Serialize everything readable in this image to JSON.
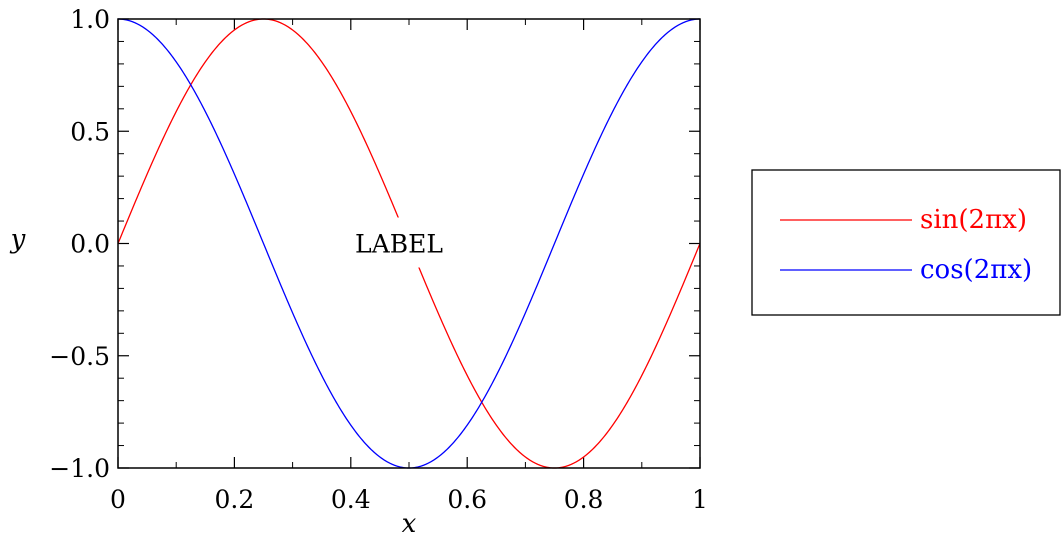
{
  "chart_data": {
    "type": "line",
    "title": "",
    "xlabel": "x",
    "ylabel": "y",
    "xlim": [
      0,
      1
    ],
    "ylim": [
      -1.0,
      1.0
    ],
    "xticks": [
      0,
      0.2,
      0.4,
      0.6,
      0.8,
      1
    ],
    "xtick_labels": [
      "0",
      "0.2",
      "0.4",
      "0.6",
      "0.8",
      "1"
    ],
    "yticks": [
      -1.0,
      -0.5,
      0.0,
      0.5,
      1.0
    ],
    "ytick_labels": [
      "−1.0",
      "−0.5",
      "0.0",
      "0.5",
      "1.0"
    ],
    "grid": false,
    "legend_position": "right",
    "series": [
      {
        "name": "sin(2πx)",
        "color": "#ff0000",
        "x": [
          0.0,
          0.025,
          0.05,
          0.075,
          0.1,
          0.125,
          0.15,
          0.175,
          0.2,
          0.225,
          0.25,
          0.275,
          0.3,
          0.325,
          0.35,
          0.375,
          0.4,
          0.425,
          0.45,
          0.475,
          0.5,
          0.525,
          0.55,
          0.575,
          0.6,
          0.625,
          0.65,
          0.675,
          0.7,
          0.725,
          0.75,
          0.775,
          0.8,
          0.825,
          0.85,
          0.875,
          0.9,
          0.925,
          0.95,
          0.975,
          1.0
        ],
        "y": [
          0.0,
          0.156,
          0.309,
          0.454,
          0.588,
          0.707,
          0.809,
          0.891,
          0.951,
          0.988,
          1.0,
          0.988,
          0.951,
          0.891,
          0.809,
          0.707,
          0.588,
          0.454,
          0.309,
          0.156,
          0.0,
          -0.156,
          -0.309,
          -0.454,
          -0.588,
          -0.707,
          -0.809,
          -0.891,
          -0.951,
          -0.988,
          -1.0,
          -0.988,
          -0.951,
          -0.891,
          -0.809,
          -0.707,
          -0.588,
          -0.454,
          -0.309,
          -0.156,
          0.0
        ]
      },
      {
        "name": "cos(2πx)",
        "color": "#0000ff",
        "x": [
          0.0,
          0.025,
          0.05,
          0.075,
          0.1,
          0.125,
          0.15,
          0.175,
          0.2,
          0.225,
          0.25,
          0.275,
          0.3,
          0.325,
          0.35,
          0.375,
          0.4,
          0.425,
          0.45,
          0.475,
          0.5,
          0.525,
          0.55,
          0.575,
          0.6,
          0.625,
          0.65,
          0.675,
          0.7,
          0.725,
          0.75,
          0.775,
          0.8,
          0.825,
          0.85,
          0.875,
          0.9,
          0.925,
          0.95,
          0.975,
          1.0
        ],
        "y": [
          1.0,
          0.988,
          0.951,
          0.891,
          0.809,
          0.707,
          0.588,
          0.454,
          0.309,
          0.156,
          0.0,
          -0.156,
          -0.309,
          -0.454,
          -0.588,
          -0.707,
          -0.809,
          -0.891,
          -0.951,
          -0.988,
          -1.0,
          -0.988,
          -0.951,
          -0.891,
          -0.809,
          -0.707,
          -0.588,
          -0.454,
          -0.309,
          -0.156,
          0.0,
          0.156,
          0.309,
          0.454,
          0.588,
          0.707,
          0.809,
          0.891,
          0.951,
          0.988,
          1.0
        ]
      }
    ],
    "annotations": [
      {
        "text": "LABEL",
        "x": 0.5,
        "y": 0.0
      }
    ]
  }
}
